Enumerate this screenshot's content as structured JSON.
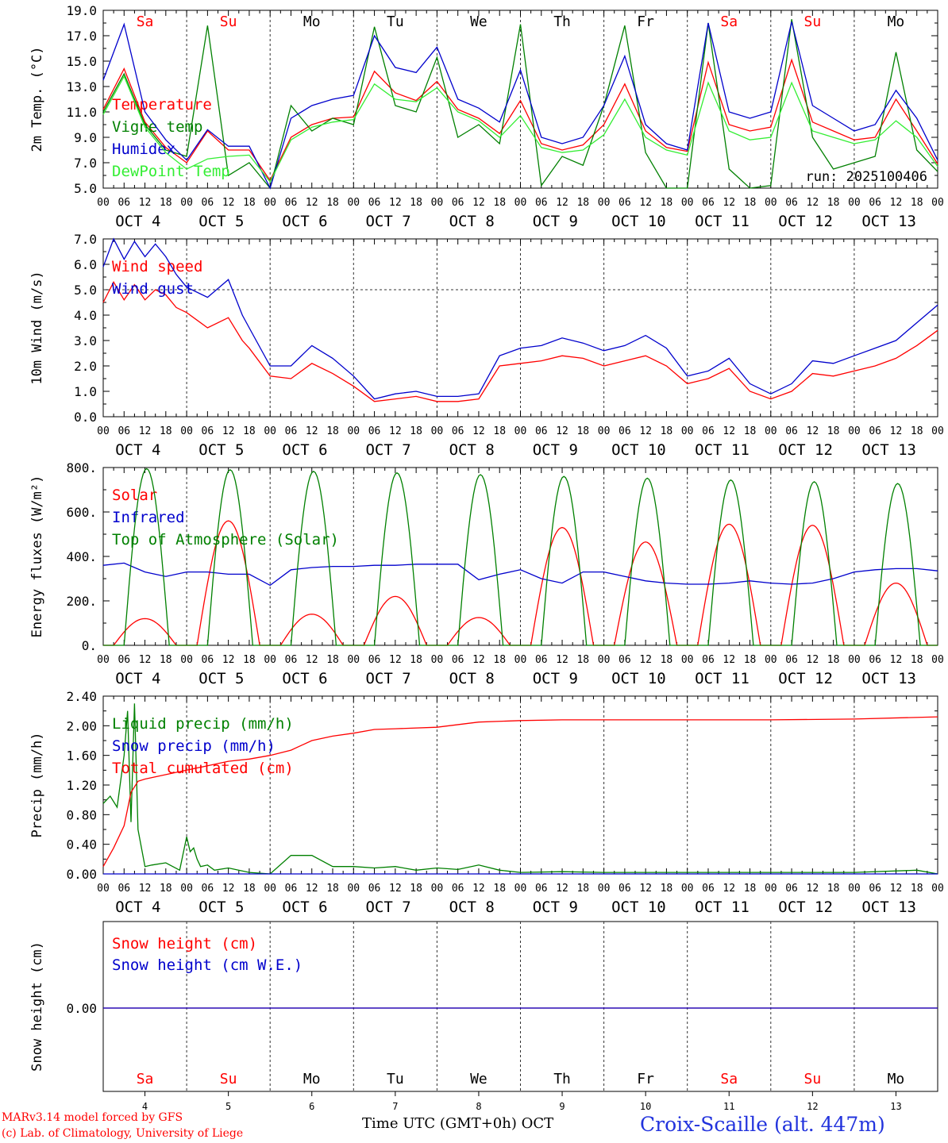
{
  "days": [
    "Sa",
    "Su",
    "Mo",
    "Tu",
    "We",
    "Th",
    "Fr",
    "Sa",
    "Su",
    "Mo"
  ],
  "day_colors": {
    "weekend": "#ff0000",
    "weekday": "#000000"
  },
  "weekend_flags": [
    true,
    true,
    false,
    false,
    false,
    false,
    false,
    true,
    true,
    false
  ],
  "date_labels": [
    "OCT  4",
    "OCT  5",
    "OCT  6",
    "OCT  7",
    "OCT  8",
    "OCT  9",
    "OCT 10",
    "OCT 11",
    "OCT 12",
    "OCT 13"
  ],
  "hour_labels": [
    "00",
    "06",
    "12",
    "18"
  ],
  "last_hour_label": "00",
  "bottom_day_numbers": [
    "4",
    "5",
    "6",
    "7",
    "8",
    "9",
    "10",
    "11",
    "12",
    "13"
  ],
  "run_label": "run: 2025100406",
  "footer": {
    "model": "MARv3.14 model forced by GFS",
    "copyright": "(c) Lab. of Climatology, University of Liege",
    "xlabel": "Time UTC (GMT+0h) OCT",
    "station": "Croix-Scaille (alt. 447m)"
  },
  "chart_data": [
    {
      "type": "line",
      "ylabel": "2m Temp. (°C)",
      "ylim": [
        5,
        19
      ],
      "yticks": [
        "5.0",
        "7.0",
        "9.0",
        "11.0",
        "13.0",
        "15.0",
        "17.0",
        "19.0"
      ],
      "x_unit": "hours since OCT 4 00 UTC",
      "series": [
        {
          "name": "Temperature",
          "color": "#ff0000",
          "x": [
            0,
            6,
            12,
            18,
            24,
            30,
            36,
            42,
            48,
            54,
            60,
            66,
            72,
            78,
            84,
            90,
            96,
            102,
            108,
            114,
            120,
            126,
            132,
            138,
            144,
            150,
            156,
            162,
            168,
            174,
            180,
            186,
            192,
            198,
            204,
            210,
            216,
            222,
            228,
            234,
            240
          ],
          "y": [
            11.2,
            14.4,
            10.2,
            8.2,
            7.0,
            9.5,
            8.0,
            8.0,
            5.6,
            9.0,
            10.0,
            10.5,
            10.6,
            14.2,
            12.5,
            11.9,
            13.4,
            11.2,
            10.5,
            9.3,
            11.9,
            8.5,
            8.0,
            8.4,
            10.0,
            13.2,
            9.5,
            8.2,
            7.9,
            14.9,
            10.0,
            9.5,
            9.8,
            15.1,
            10.2,
            9.5,
            8.8,
            9.0,
            12.0,
            9.5,
            6.9
          ]
        },
        {
          "name": "Vigne temp",
          "color": "#008000",
          "x": [
            0,
            6,
            12,
            18,
            24,
            30,
            36,
            42,
            48,
            54,
            60,
            66,
            72,
            78,
            84,
            90,
            96,
            102,
            108,
            114,
            120,
            126,
            132,
            138,
            144,
            150,
            156,
            162,
            168,
            174,
            180,
            186,
            192,
            198,
            204,
            210,
            216,
            222,
            228,
            234,
            240
          ],
          "y": [
            11.0,
            14.0,
            10.0,
            8.0,
            7.5,
            17.8,
            6.0,
            7.0,
            5.0,
            11.5,
            9.5,
            10.5,
            10.0,
            17.7,
            11.5,
            11.0,
            15.3,
            9.0,
            10.0,
            8.5,
            17.9,
            5.2,
            7.5,
            6.8,
            11.5,
            17.8,
            7.8,
            5.0,
            5.0,
            18.0,
            6.5,
            5.0,
            5.2,
            18.3,
            9.0,
            6.5,
            7.0,
            7.5,
            15.7,
            8.0,
            6.3
          ]
        },
        {
          "name": "Humidex",
          "color": "#0000cc",
          "x": [
            0,
            6,
            12,
            18,
            24,
            30,
            36,
            42,
            48,
            54,
            60,
            66,
            72,
            78,
            84,
            90,
            96,
            102,
            108,
            114,
            120,
            126,
            132,
            138,
            144,
            150,
            156,
            162,
            168,
            174,
            180,
            186,
            192,
            198,
            204,
            210,
            216,
            222,
            228,
            234,
            240
          ],
          "y": [
            13.5,
            17.9,
            11.0,
            8.8,
            7.2,
            9.6,
            8.3,
            8.3,
            5.0,
            10.5,
            11.5,
            12.0,
            12.3,
            17.0,
            14.5,
            14.1,
            16.1,
            12.0,
            11.3,
            10.2,
            14.3,
            9.0,
            8.5,
            9.0,
            11.5,
            15.4,
            10.0,
            8.5,
            8.0,
            18.0,
            11.0,
            10.5,
            11.0,
            18.1,
            11.5,
            10.5,
            9.5,
            10.0,
            12.7,
            10.5,
            7.2
          ]
        },
        {
          "name": "DewPoint Temp",
          "color": "#33ee33",
          "x": [
            0,
            6,
            12,
            18,
            24,
            30,
            36,
            42,
            48,
            54,
            60,
            66,
            72,
            78,
            84,
            90,
            96,
            102,
            108,
            114,
            120,
            126,
            132,
            138,
            144,
            150,
            156,
            162,
            168,
            174,
            180,
            186,
            192,
            198,
            204,
            210,
            216,
            222,
            228,
            234,
            240
          ],
          "y": [
            10.8,
            13.8,
            9.8,
            7.8,
            6.5,
            7.3,
            7.5,
            7.6,
            5.5,
            8.8,
            9.8,
            10.2,
            10.4,
            13.2,
            12.0,
            11.8,
            12.9,
            11.0,
            10.3,
            9.0,
            10.7,
            8.2,
            7.8,
            8.0,
            9.2,
            12.0,
            9.0,
            8.0,
            7.6,
            13.3,
            9.5,
            8.8,
            9.0,
            13.3,
            9.5,
            9.0,
            8.5,
            8.8,
            10.3,
            9.0,
            6.7
          ]
        }
      ],
      "legend_placement": "left, inside plot"
    },
    {
      "type": "line",
      "ylabel": "10m Wind (m/s)",
      "ylim": [
        0,
        7
      ],
      "yticks": [
        "0.0",
        "1.0",
        "2.0",
        "3.0",
        "4.0",
        "5.0",
        "6.0",
        "7.0"
      ],
      "reference_line": 5,
      "series": [
        {
          "name": "Wind speed",
          "color": "#ff0000",
          "x": [
            0,
            3,
            6,
            9,
            12,
            15,
            18,
            21,
            24,
            30,
            36,
            40,
            42,
            48,
            54,
            60,
            66,
            72,
            78,
            84,
            90,
            96,
            102,
            108,
            114,
            120,
            126,
            132,
            138,
            144,
            150,
            156,
            162,
            168,
            174,
            180,
            186,
            192,
            198,
            204,
            210,
            216,
            222,
            228,
            234,
            240
          ],
          "y": [
            4.5,
            5.3,
            4.6,
            5.2,
            4.6,
            5.0,
            4.8,
            4.3,
            4.1,
            3.5,
            3.9,
            3.0,
            2.7,
            1.6,
            1.5,
            2.1,
            1.7,
            1.2,
            0.6,
            0.7,
            0.8,
            0.6,
            0.6,
            0.7,
            2.0,
            2.1,
            2.2,
            2.4,
            2.3,
            2.0,
            2.2,
            2.4,
            2.0,
            1.3,
            1.5,
            1.9,
            1.0,
            0.7,
            1.0,
            1.7,
            1.6,
            1.8,
            2.0,
            2.3,
            2.8,
            3.4
          ]
        },
        {
          "name": "Wind gust",
          "color": "#0000cc",
          "x": [
            0,
            3,
            6,
            9,
            12,
            15,
            18,
            21,
            24,
            30,
            36,
            40,
            42,
            48,
            54,
            60,
            66,
            72,
            78,
            84,
            90,
            96,
            102,
            108,
            114,
            120,
            126,
            132,
            138,
            144,
            150,
            156,
            162,
            168,
            174,
            180,
            186,
            192,
            198,
            204,
            210,
            216,
            222,
            228,
            234,
            240
          ],
          "y": [
            5.9,
            7.0,
            6.2,
            6.9,
            6.3,
            6.8,
            6.3,
            5.6,
            5.1,
            4.7,
            5.4,
            4.0,
            3.5,
            2.0,
            2.0,
            2.8,
            2.3,
            1.6,
            0.7,
            0.9,
            1.0,
            0.8,
            0.8,
            0.9,
            2.4,
            2.7,
            2.8,
            3.1,
            2.9,
            2.6,
            2.8,
            3.2,
            2.7,
            1.6,
            1.8,
            2.3,
            1.3,
            0.9,
            1.3,
            2.2,
            2.1,
            2.4,
            2.7,
            3.0,
            3.7,
            4.4
          ]
        }
      ],
      "legend_placement": "left, inside plot"
    },
    {
      "type": "line",
      "ylabel": "Energy fluxes (W/m²)",
      "ylim": [
        0,
        800
      ],
      "yticks": [
        "0.",
        "200.",
        "400.",
        "600.",
        "800."
      ],
      "series": [
        {
          "name": "Solar",
          "color": "#ff0000",
          "peaks": [
            {
              "center": 12,
              "peak": 120
            },
            {
              "center": 36,
              "peak": 560
            },
            {
              "center": 60,
              "peak": 140
            },
            {
              "center": 84,
              "peak": 220
            },
            {
              "center": 108,
              "peak": 125
            },
            {
              "center": 132,
              "peak": 530
            },
            {
              "center": 156,
              "peak": 465
            },
            {
              "center": 180,
              "peak": 545
            },
            {
              "center": 204,
              "peak": 540
            },
            {
              "center": 228,
              "peak": 280
            }
          ],
          "half_width": 9
        },
        {
          "name": "Infrared",
          "color": "#0000cc",
          "x": [
            0,
            6,
            12,
            18,
            24,
            30,
            36,
            42,
            48,
            54,
            60,
            66,
            72,
            78,
            84,
            90,
            96,
            102,
            108,
            114,
            120,
            126,
            132,
            138,
            144,
            150,
            156,
            162,
            168,
            174,
            180,
            186,
            192,
            198,
            204,
            210,
            216,
            222,
            228,
            234,
            240
          ],
          "y": [
            360,
            370,
            330,
            310,
            330,
            330,
            320,
            320,
            270,
            340,
            350,
            355,
            355,
            360,
            360,
            365,
            365,
            365,
            295,
            320,
            340,
            300,
            280,
            330,
            330,
            310,
            290,
            280,
            275,
            275,
            280,
            290,
            280,
            275,
            280,
            300,
            330,
            340,
            345,
            345,
            335
          ]
        },
        {
          "name": "Top of Atmosphere (Solar)",
          "color": "#008000",
          "peaks": [
            {
              "center": 12.5,
              "peak": 795
            },
            {
              "center": 36.5,
              "peak": 790
            },
            {
              "center": 60.5,
              "peak": 783
            },
            {
              "center": 84.5,
              "peak": 776
            },
            {
              "center": 108.5,
              "peak": 768
            },
            {
              "center": 132.5,
              "peak": 760
            },
            {
              "center": 156.5,
              "peak": 752
            },
            {
              "center": 180.5,
              "peak": 744
            },
            {
              "center": 204.5,
              "peak": 736
            },
            {
              "center": 228.5,
              "peak": 728
            }
          ],
          "half_width": 6.5
        }
      ],
      "legend_placement": "left, inside plot"
    },
    {
      "type": "line",
      "ylabel": "Precip (mm/h)",
      "ylim": [
        0,
        2.4
      ],
      "yticks": [
        "0.00",
        "0.40",
        "0.80",
        "1.20",
        "1.60",
        "2.00",
        "2.40"
      ],
      "series": [
        {
          "name": "Liquid precip (mm/h)",
          "color": "#008000",
          "x": [
            0,
            2,
            4,
            6,
            7,
            8,
            9,
            10,
            12,
            14,
            18,
            22,
            24,
            25,
            26,
            27,
            28,
            30,
            32,
            36,
            42,
            48,
            54,
            60,
            66,
            72,
            78,
            84,
            90,
            96,
            102,
            108,
            114,
            120,
            132,
            144,
            168,
            192,
            216,
            234,
            240
          ],
          "y": [
            0.95,
            1.05,
            0.9,
            1.6,
            2.2,
            0.7,
            2.3,
            0.6,
            0.1,
            0.12,
            0.15,
            0.05,
            0.5,
            0.3,
            0.35,
            0.2,
            0.1,
            0.12,
            0.05,
            0.08,
            0.02,
            0.0,
            0.25,
            0.25,
            0.1,
            0.1,
            0.08,
            0.1,
            0.05,
            0.08,
            0.06,
            0.12,
            0.05,
            0.02,
            0.03,
            0.02,
            0.02,
            0.02,
            0.02,
            0.05,
            0.0
          ]
        },
        {
          "name": "Snow precip (mm/h)",
          "color": "#0000cc",
          "x": [
            0,
            240
          ],
          "y": [
            0,
            0
          ]
        },
        {
          "name": "Total cumulated (cm)",
          "color": "#ff0000",
          "x": [
            0,
            3,
            6,
            8,
            10,
            12,
            18,
            24,
            30,
            36,
            42,
            48,
            54,
            60,
            66,
            72,
            78,
            84,
            96,
            108,
            120,
            132,
            144,
            168,
            192,
            216,
            240
          ],
          "y": [
            0.1,
            0.35,
            0.65,
            1.1,
            1.25,
            1.28,
            1.34,
            1.4,
            1.46,
            1.52,
            1.55,
            1.6,
            1.67,
            1.8,
            1.86,
            1.9,
            1.95,
            1.96,
            1.98,
            2.05,
            2.07,
            2.08,
            2.08,
            2.08,
            2.08,
            2.09,
            2.12
          ]
        }
      ],
      "legend_placement": "left, inside plot"
    },
    {
      "type": "line",
      "ylabel": "Snow height (cm)",
      "yticks": [
        "0.00"
      ],
      "series": [
        {
          "name": "Snow height (cm)",
          "color": "#ff0000",
          "x": [
            0,
            240
          ],
          "y": [
            0,
            0
          ]
        },
        {
          "name": "Snow height (cm W.E.)",
          "color": "#0000cc",
          "x": [
            0,
            240
          ],
          "y": [
            0,
            0
          ]
        }
      ],
      "legend_placement": "left, inside plot"
    }
  ]
}
